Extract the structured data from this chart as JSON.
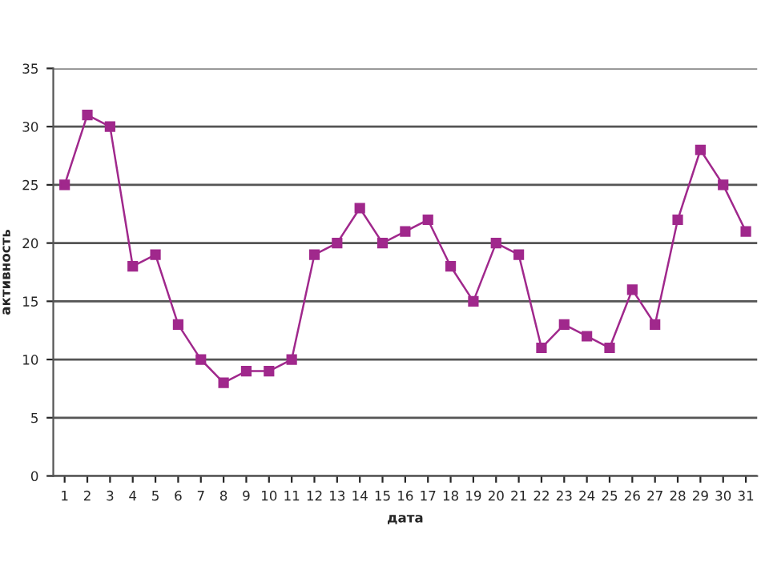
{
  "chart_data": {
    "type": "line",
    "xlabel": "дата",
    "ylabel": "активность",
    "categories": [
      "1",
      "2",
      "3",
      "4",
      "5",
      "6",
      "7",
      "8",
      "9",
      "10",
      "11",
      "12",
      "13",
      "14",
      "15",
      "16",
      "17",
      "18",
      "19",
      "20",
      "21",
      "22",
      "23",
      "24",
      "25",
      "26",
      "27",
      "28",
      "29",
      "30",
      "31"
    ],
    "series": [
      {
        "color": "#a0288c",
        "values": [
          25,
          31,
          30,
          18,
          19,
          13,
          10,
          8,
          9,
          9,
          10,
          19,
          20,
          23,
          20,
          21,
          22,
          18,
          15,
          20,
          19,
          11,
          13,
          12,
          11,
          16,
          13,
          22,
          28,
          25,
          21
        ]
      }
    ],
    "ylim": [
      0,
      35
    ],
    "yticks": [
      0,
      5,
      10,
      15,
      20,
      25,
      30,
      35
    ],
    "grid": "y",
    "marker": "square",
    "line_style": "solid",
    "legend": false
  }
}
